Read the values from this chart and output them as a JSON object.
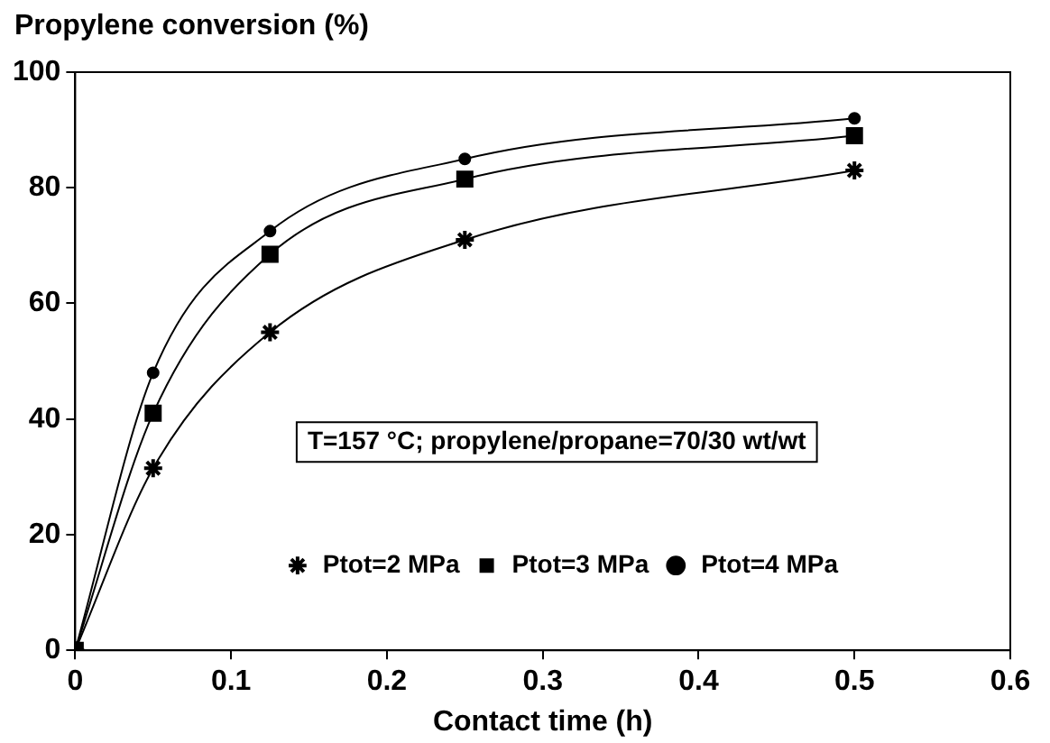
{
  "chart_data": {
    "type": "line",
    "ylabel": "Propylene conversion (%)",
    "xlabel": "Contact time (h)",
    "x": [
      0,
      0.05,
      0.125,
      0.25,
      0.5
    ],
    "series": [
      {
        "name": "Ptot=2 MPa",
        "color": "#000000",
        "marker": "cross",
        "values": [
          0,
          31.5,
          55,
          71,
          83
        ]
      },
      {
        "name": "Ptot=3 MPa",
        "color": "#000000",
        "marker": "square",
        "values": [
          0,
          41,
          68.5,
          81.5,
          89
        ]
      },
      {
        "name": "Ptot=4 MPa",
        "color": "#000000",
        "marker": "circle",
        "values": [
          0,
          48,
          72.5,
          85,
          92
        ]
      }
    ],
    "xlim": [
      0,
      0.6
    ],
    "xticks": [
      0,
      0.1,
      0.2,
      0.3,
      0.4,
      0.5,
      0.6
    ],
    "ylim": [
      0,
      100
    ],
    "yticks": [
      0,
      20,
      40,
      60,
      80,
      100
    ],
    "annotations": [
      "T=157 °C; propylene/propane=70/30 wt/wt"
    ],
    "legend": "bottom",
    "grid": false,
    "line_style": "solid"
  }
}
